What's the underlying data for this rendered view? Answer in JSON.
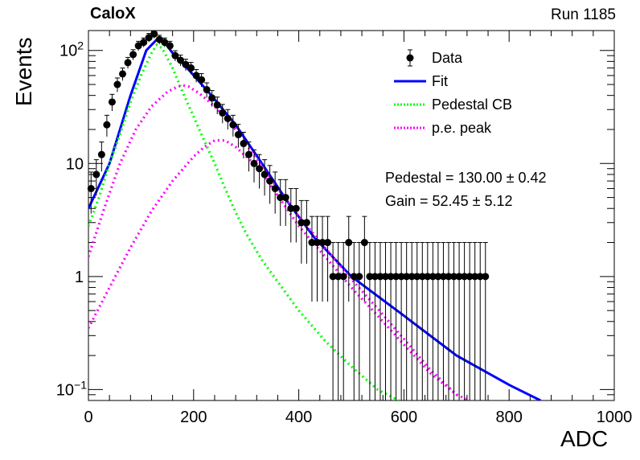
{
  "header": {
    "title": "CaloX",
    "run": "Run 1185"
  },
  "fit_results": {
    "pedestal": "Pedestal = 130.00 ± 0.42",
    "gain": "Gain = 52.45 ± 5.12"
  },
  "chart_data": {
    "type": "scatter",
    "title": "CaloX",
    "xlabel": "ADC",
    "ylabel": "Events",
    "xlim": [
      0,
      1000
    ],
    "ylim": [
      0.08,
      150
    ],
    "yscale": "log",
    "grid": false,
    "legend_position": "top-right",
    "x_ticks": [
      0,
      200,
      400,
      600,
      800,
      1000
    ],
    "x_tick_labels": [
      "0",
      "200",
      "400",
      "600",
      "800",
      "1000"
    ],
    "y_ticks": [
      0.1,
      1,
      10,
      100
    ],
    "y_tick_labels": [
      "10^-1",
      "1",
      "10",
      "10^2"
    ],
    "colors": {
      "data": "#000000",
      "fit": "#0000ff",
      "pedestal": "#00ff00",
      "pe_peak": "#ff00ff"
    },
    "series": [
      {
        "name": "Data",
        "kind": "points-with-errors",
        "x": [
          5,
          15,
          25,
          35,
          45,
          55,
          65,
          75,
          85,
          95,
          105,
          115,
          125,
          135,
          145,
          155,
          165,
          175,
          185,
          195,
          205,
          215,
          225,
          235,
          245,
          255,
          265,
          275,
          285,
          295,
          305,
          315,
          325,
          335,
          345,
          355,
          365,
          375,
          385,
          395,
          405,
          415,
          425,
          435,
          445,
          455,
          465,
          475,
          485,
          495,
          505,
          515,
          525,
          535,
          545,
          555,
          565,
          575,
          585,
          595,
          605,
          615,
          625,
          635,
          645,
          655,
          665,
          675,
          685,
          695,
          705,
          715,
          725,
          735,
          745,
          755
        ],
        "y": [
          6,
          8,
          12,
          22,
          35,
          50,
          62,
          78,
          92,
          110,
          118,
          130,
          140,
          125,
          118,
          110,
          90,
          82,
          75,
          70,
          60,
          55,
          45,
          38,
          33,
          28,
          25,
          22,
          18,
          15,
          12,
          10,
          9,
          8,
          7,
          6,
          5,
          5,
          4,
          4,
          3,
          3,
          2,
          2,
          2,
          2,
          1,
          1,
          1,
          2,
          1,
          1,
          2,
          1,
          1,
          1,
          1,
          1,
          1,
          1,
          1,
          1,
          1,
          1,
          1,
          1,
          1,
          1,
          1,
          1,
          1,
          1,
          1,
          1,
          1,
          1
        ],
        "errors": [
          2.4,
          2.8,
          3.5,
          4.7,
          5.9,
          7.1,
          7.9,
          8.8,
          9.6,
          10.5,
          10.9,
          11.4,
          11.8,
          11.2,
          10.9,
          10.5,
          9.5,
          9.1,
          8.7,
          8.4,
          7.7,
          7.4,
          6.7,
          6.2,
          5.7,
          5.3,
          5,
          4.7,
          4.2,
          3.9,
          3.5,
          3.2,
          3,
          2.8,
          2.6,
          2.4,
          2.2,
          2.2,
          2,
          2,
          1.7,
          1.7,
          1.4,
          1.4,
          1.4,
          1.4,
          1,
          1,
          1,
          1.4,
          1,
          1,
          1.4,
          1,
          1,
          1,
          1,
          1,
          1,
          1,
          1,
          1,
          1,
          1,
          1,
          1,
          1,
          1,
          1,
          1,
          1,
          1,
          1,
          1,
          1,
          1
        ]
      },
      {
        "name": "Fit",
        "kind": "line",
        "x": [
          0,
          40,
          80,
          110,
          130,
          145,
          160,
          190,
          230,
          280,
          330,
          380,
          430,
          500,
          600,
          700,
          800,
          860
        ],
        "y": [
          4,
          10,
          40,
          100,
          125,
          118,
          95,
          68,
          42,
          22,
          10,
          4.5,
          2.2,
          1.0,
          0.45,
          0.2,
          0.11,
          0.08
        ]
      },
      {
        "name": "Pedestal CB",
        "kind": "dotted",
        "x": [
          0,
          20,
          40,
          60,
          80,
          100,
          120,
          130,
          140,
          160,
          180,
          200,
          220,
          240,
          260,
          280,
          300,
          330,
          360,
          400,
          450,
          500,
          550,
          590
        ],
        "y": [
          2.8,
          5,
          10,
          18,
          35,
          60,
          95,
          112,
          105,
          70,
          42,
          26,
          16,
          10,
          6,
          3.7,
          2.4,
          1.4,
          0.9,
          0.5,
          0.27,
          0.16,
          0.1,
          0.08
        ]
      },
      {
        "name": "p.e. peak",
        "kind": "dotted",
        "x": [
          0,
          30,
          60,
          90,
          120,
          150,
          170,
          180,
          190,
          210,
          240,
          280,
          320,
          360,
          400,
          450,
          500,
          550,
          600,
          650,
          700,
          725
        ],
        "y": [
          1.5,
          4,
          10,
          20,
          32,
          43,
          48,
          49,
          48,
          42,
          32,
          20,
          11,
          6,
          3.4,
          1.8,
          0.95,
          0.52,
          0.28,
          0.15,
          0.09,
          0.08
        ]
      },
      {
        "name": "",
        "kind": "dotted",
        "x": [
          0,
          40,
          80,
          120,
          160,
          200,
          220,
          240,
          260,
          280,
          320,
          360,
          400,
          450,
          500,
          550,
          600,
          650,
          700
        ],
        "y": [
          0.35,
          0.8,
          1.8,
          3.8,
          7,
          11.5,
          14,
          16,
          16,
          14,
          9.5,
          5.2,
          2.8,
          1.5,
          0.8,
          0.45,
          0.25,
          0.14,
          0.09
        ]
      }
    ]
  }
}
